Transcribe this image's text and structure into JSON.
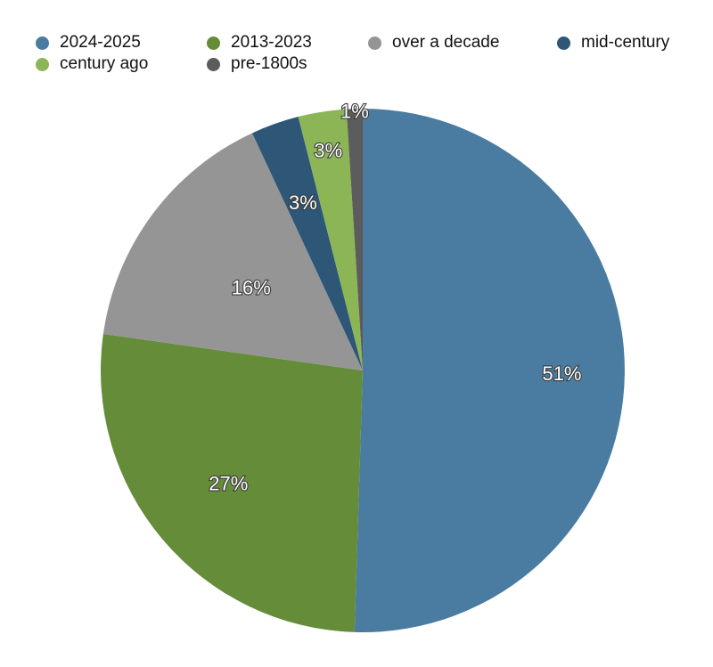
{
  "chart_data": {
    "type": "pie",
    "title": "",
    "legend_position": "top",
    "categories": [
      "2024-2025",
      "2013-2023",
      "over a decade",
      "mid-century",
      "century ago",
      "pre-1800s"
    ],
    "values": [
      51,
      27,
      16,
      3,
      3,
      1
    ],
    "labels": [
      "51%",
      "27%",
      "16%",
      "3%",
      "3%",
      "1%"
    ],
    "colors": [
      "#4a7ba0",
      "#658c38",
      "#959595",
      "#2d5677",
      "#8cb556",
      "#5c5c5c"
    ],
    "start": "12 o'clock",
    "direction": "clockwise"
  }
}
